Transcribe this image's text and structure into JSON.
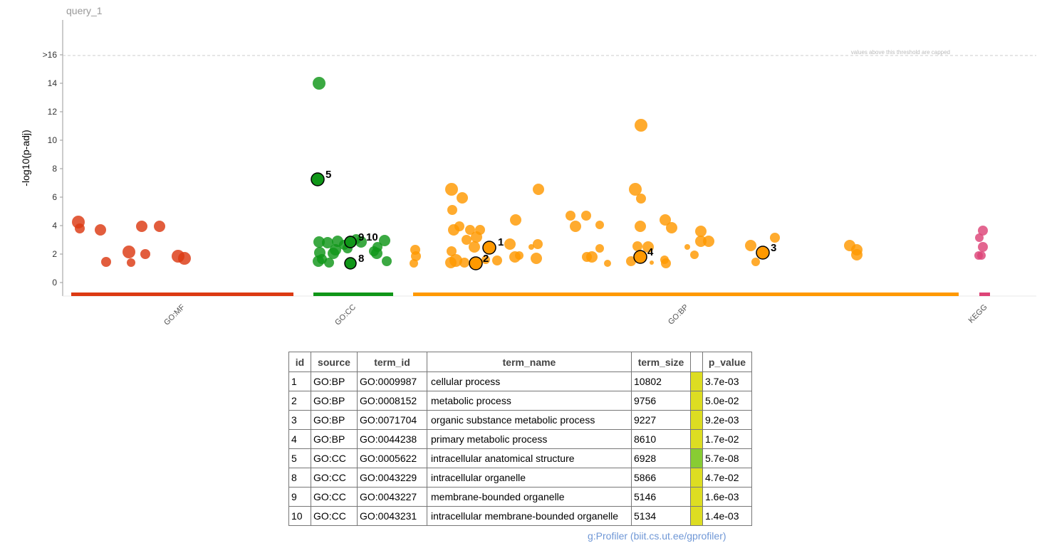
{
  "query_label": "query_1",
  "threshold_note": "values above this threshold are capped",
  "footer": "g:Profiler (biit.cs.ut.ee/gprofiler)",
  "chart_data": {
    "type": "scatter",
    "title": "",
    "ylabel": "-log10(p-adj)",
    "ylim": [
      -0.8,
      18.3
    ],
    "y_ticks": [
      {
        "value": 0,
        "label": "0"
      },
      {
        "value": 2,
        "label": "2"
      },
      {
        "value": 4,
        "label": "4"
      },
      {
        "value": 6,
        "label": "6"
      },
      {
        "value": 8,
        "label": "8"
      },
      {
        "value": 10,
        "label": "10"
      },
      {
        "value": 12,
        "label": "12"
      },
      {
        "value": 14,
        "label": "14"
      },
      {
        "value": 16,
        "label": ">16"
      }
    ],
    "cap_threshold": 16,
    "grid": false,
    "sources": [
      {
        "name": "GO:MF",
        "color": "#dc3912",
        "range": [
          100,
          412
        ]
      },
      {
        "name": "GO:CC",
        "color": "#109618",
        "range": [
          440,
          552
        ]
      },
      {
        "name": "GO:BP",
        "color": "#ff9900",
        "range": [
          580,
          1346
        ]
      },
      {
        "name": "KEGG",
        "color": "#dd4477",
        "range": [
          1375,
          1390
        ]
      }
    ],
    "points": [
      {
        "s": 0,
        "x": 110,
        "y": 4.25,
        "r": 9
      },
      {
        "s": 0,
        "x": 112,
        "y": 3.8,
        "r": 7
      },
      {
        "s": 0,
        "x": 141,
        "y": 3.7,
        "r": 8
      },
      {
        "s": 0,
        "x": 149,
        "y": 1.45,
        "r": 7
      },
      {
        "s": 0,
        "x": 181,
        "y": 2.15,
        "r": 9
      },
      {
        "s": 0,
        "x": 184,
        "y": 1.4,
        "r": 6
      },
      {
        "s": 0,
        "x": 199,
        "y": 3.95,
        "r": 8
      },
      {
        "s": 0,
        "x": 204,
        "y": 2.0,
        "r": 7
      },
      {
        "s": 0,
        "x": 224,
        "y": 3.95,
        "r": 8
      },
      {
        "s": 0,
        "x": 250,
        "y": 1.85,
        "r": 9
      },
      {
        "s": 0,
        "x": 259,
        "y": 1.7,
        "r": 9
      },
      {
        "s": 1,
        "x": 448,
        "y": 14.0,
        "r": 9
      },
      {
        "s": 1,
        "x": 448,
        "y": 2.85,
        "r": 8
      },
      {
        "s": 1,
        "x": 449,
        "y": 2.1,
        "r": 8
      },
      {
        "s": 1,
        "x": 447,
        "y": 1.5,
        "r": 8
      },
      {
        "s": 1,
        "x": 452,
        "y": 1.65,
        "r": 7
      },
      {
        "s": 1,
        "x": 460,
        "y": 2.8,
        "r": 8
      },
      {
        "s": 1,
        "x": 462,
        "y": 1.4,
        "r": 7
      },
      {
        "s": 1,
        "x": 468,
        "y": 2.05,
        "r": 8
      },
      {
        "s": 1,
        "x": 471,
        "y": 2.3,
        "r": 8
      },
      {
        "s": 1,
        "x": 474,
        "y": 2.9,
        "r": 8
      },
      {
        "s": 1,
        "x": 483,
        "y": 2.65,
        "r": 7
      },
      {
        "s": 1,
        "x": 488,
        "y": 2.4,
        "r": 7
      },
      {
        "s": 1,
        "x": 500,
        "y": 3.05,
        "r": 7
      },
      {
        "s": 1,
        "x": 507,
        "y": 2.85,
        "r": 8
      },
      {
        "s": 1,
        "x": 525,
        "y": 2.2,
        "r": 7
      },
      {
        "s": 1,
        "x": 529,
        "y": 2.05,
        "r": 8
      },
      {
        "s": 1,
        "x": 530,
        "y": 2.5,
        "r": 7
      },
      {
        "s": 1,
        "x": 540,
        "y": 2.95,
        "r": 8
      },
      {
        "s": 1,
        "x": 543,
        "y": 1.5,
        "r": 7
      },
      {
        "s": 2,
        "x": 583,
        "y": 2.3,
        "r": 7
      },
      {
        "s": 2,
        "x": 584,
        "y": 1.85,
        "r": 7
      },
      {
        "s": 2,
        "x": 581,
        "y": 1.35,
        "r": 6
      },
      {
        "s": 2,
        "x": 634,
        "y": 6.55,
        "r": 9
      },
      {
        "s": 2,
        "x": 635,
        "y": 5.1,
        "r": 7
      },
      {
        "s": 2,
        "x": 637,
        "y": 3.7,
        "r": 8
      },
      {
        "s": 2,
        "x": 634,
        "y": 2.2,
        "r": 7
      },
      {
        "s": 2,
        "x": 633,
        "y": 1.4,
        "r": 8
      },
      {
        "s": 2,
        "x": 640,
        "y": 1.55,
        "r": 9
      },
      {
        "s": 2,
        "x": 645,
        "y": 3.95,
        "r": 7
      },
      {
        "s": 2,
        "x": 649,
        "y": 5.95,
        "r": 8
      },
      {
        "s": 2,
        "x": 652,
        "y": 1.4,
        "r": 7
      },
      {
        "s": 2,
        "x": 655,
        "y": 3.0,
        "r": 7
      },
      {
        "s": 2,
        "x": 660,
        "y": 3.7,
        "r": 7
      },
      {
        "s": 2,
        "x": 666,
        "y": 2.5,
        "r": 8
      },
      {
        "s": 2,
        "x": 669,
        "y": 3.2,
        "r": 8
      },
      {
        "s": 2,
        "x": 674,
        "y": 3.7,
        "r": 7
      },
      {
        "s": 2,
        "x": 682,
        "y": 1.6,
        "r": 6
      },
      {
        "s": 2,
        "x": 698,
        "y": 1.55,
        "r": 7
      },
      {
        "s": 2,
        "x": 716,
        "y": 2.7,
        "r": 8
      },
      {
        "s": 2,
        "x": 723,
        "y": 1.8,
        "r": 8
      },
      {
        "s": 2,
        "x": 724,
        "y": 4.4,
        "r": 8
      },
      {
        "s": 2,
        "x": 729,
        "y": 1.9,
        "r": 6
      },
      {
        "s": 2,
        "x": 746,
        "y": 2.5,
        "r": 4
      },
      {
        "s": 2,
        "x": 753,
        "y": 1.7,
        "r": 8
      },
      {
        "s": 2,
        "x": 755,
        "y": 2.7,
        "r": 7
      },
      {
        "s": 2,
        "x": 756,
        "y": 6.55,
        "r": 8
      },
      {
        "s": 2,
        "x": 801,
        "y": 4.7,
        "r": 7
      },
      {
        "s": 2,
        "x": 808,
        "y": 3.95,
        "r": 8
      },
      {
        "s": 2,
        "x": 823,
        "y": 4.7,
        "r": 7
      },
      {
        "s": 2,
        "x": 824,
        "y": 1.8,
        "r": 7
      },
      {
        "s": 2,
        "x": 831,
        "y": 1.8,
        "r": 8
      },
      {
        "s": 2,
        "x": 842,
        "y": 4.05,
        "r": 6
      },
      {
        "s": 2,
        "x": 842,
        "y": 2.4,
        "r": 6
      },
      {
        "s": 2,
        "x": 853,
        "y": 1.35,
        "r": 5
      },
      {
        "s": 2,
        "x": 900,
        "y": 11.05,
        "r": 9
      },
      {
        "s": 2,
        "x": 892,
        "y": 6.55,
        "r": 9
      },
      {
        "s": 2,
        "x": 900,
        "y": 5.9,
        "r": 7
      },
      {
        "s": 2,
        "x": 899,
        "y": 3.95,
        "r": 8
      },
      {
        "s": 2,
        "x": 895,
        "y": 2.55,
        "r": 7
      },
      {
        "s": 2,
        "x": 886,
        "y": 1.5,
        "r": 7
      },
      {
        "s": 2,
        "x": 910,
        "y": 2.5,
        "r": 8
      },
      {
        "s": 2,
        "x": 915,
        "y": 1.4,
        "r": 3
      },
      {
        "s": 2,
        "x": 933,
        "y": 1.6,
        "r": 6
      },
      {
        "s": 2,
        "x": 935,
        "y": 1.35,
        "r": 7
      },
      {
        "s": 2,
        "x": 934,
        "y": 4.4,
        "r": 8
      },
      {
        "s": 2,
        "x": 943,
        "y": 3.85,
        "r": 8
      },
      {
        "s": 2,
        "x": 965,
        "y": 2.5,
        "r": 4
      },
      {
        "s": 2,
        "x": 975,
        "y": 1.95,
        "r": 6
      },
      {
        "s": 2,
        "x": 984,
        "y": 3.6,
        "r": 8
      },
      {
        "s": 2,
        "x": 984,
        "y": 2.9,
        "r": 8
      },
      {
        "s": 2,
        "x": 995,
        "y": 2.9,
        "r": 8
      },
      {
        "s": 2,
        "x": 1054,
        "y": 2.6,
        "r": 8
      },
      {
        "s": 2,
        "x": 1061,
        "y": 1.45,
        "r": 6
      },
      {
        "s": 2,
        "x": 1088,
        "y": 3.15,
        "r": 7
      },
      {
        "s": 2,
        "x": 1193,
        "y": 2.6,
        "r": 8
      },
      {
        "s": 2,
        "x": 1203,
        "y": 2.3,
        "r": 8
      },
      {
        "s": 2,
        "x": 1203,
        "y": 1.95,
        "r": 8
      },
      {
        "s": 3,
        "x": 1380,
        "y": 3.65,
        "r": 7
      },
      {
        "s": 3,
        "x": 1375,
        "y": 3.15,
        "r": 6
      },
      {
        "s": 3,
        "x": 1380,
        "y": 2.5,
        "r": 7
      },
      {
        "s": 3,
        "x": 1374,
        "y": 1.9,
        "r": 6
      },
      {
        "s": 3,
        "x": 1378,
        "y": 1.9,
        "r": 6
      }
    ],
    "highlighted": [
      {
        "s": 2,
        "x": 687,
        "y": 2.45,
        "r": 9,
        "label": "1"
      },
      {
        "s": 2,
        "x": 668,
        "y": 1.35,
        "r": 9,
        "label": "2"
      },
      {
        "s": 2,
        "x": 1071,
        "y": 2.1,
        "r": 9,
        "label": "3"
      },
      {
        "s": 2,
        "x": 899,
        "y": 1.8,
        "r": 9,
        "label": "4"
      },
      {
        "s": 1,
        "x": 446,
        "y": 7.25,
        "r": 9,
        "label": "5"
      },
      {
        "s": 1,
        "x": 492,
        "y": 1.35,
        "r": 8,
        "label": "8"
      },
      {
        "s": 1,
        "x": 492,
        "y": 2.85,
        "r": 8,
        "label": "9"
      },
      {
        "s": 1,
        "x": 492,
        "y": 2.85,
        "r": 8,
        "label": "10"
      }
    ]
  },
  "table": {
    "headers": [
      "id",
      "source",
      "term_id",
      "term_name",
      "term_size",
      "",
      "p_value"
    ],
    "rows": [
      {
        "id": "1",
        "source": "GO:BP",
        "term_id": "GO:0009987",
        "term_name": "cellular process",
        "term_size": "10802",
        "bar_color": "#dddd22",
        "p_value": "3.7e-03"
      },
      {
        "id": "2",
        "source": "GO:BP",
        "term_id": "GO:0008152",
        "term_name": "metabolic process",
        "term_size": "9756",
        "bar_color": "#dddd22",
        "p_value": "5.0e-02"
      },
      {
        "id": "3",
        "source": "GO:BP",
        "term_id": "GO:0071704",
        "term_name": "organic substance metabolic process",
        "term_size": "9227",
        "bar_color": "#dddd22",
        "p_value": "9.2e-03"
      },
      {
        "id": "4",
        "source": "GO:BP",
        "term_id": "GO:0044238",
        "term_name": "primary metabolic process",
        "term_size": "8610",
        "bar_color": "#dddd22",
        "p_value": "1.7e-02"
      },
      {
        "id": "5",
        "source": "GO:CC",
        "term_id": "GO:0005622",
        "term_name": "intracellular anatomical structure",
        "term_size": "6928",
        "bar_color": "#88cc33",
        "p_value": "5.7e-08"
      },
      {
        "id": "8",
        "source": "GO:CC",
        "term_id": "GO:0043229",
        "term_name": "intracellular organelle",
        "term_size": "5866",
        "bar_color": "#dddd22",
        "p_value": "4.7e-02"
      },
      {
        "id": "9",
        "source": "GO:CC",
        "term_id": "GO:0043227",
        "term_name": "membrane-bounded organelle",
        "term_size": "5146",
        "bar_color": "#dddd22",
        "p_value": "1.6e-03"
      },
      {
        "id": "10",
        "source": "GO:CC",
        "term_id": "GO:0043231",
        "term_name": "intracellular membrane-bounded organelle",
        "term_size": "5134",
        "bar_color": "#dddd22",
        "p_value": "1.4e-03"
      }
    ]
  }
}
